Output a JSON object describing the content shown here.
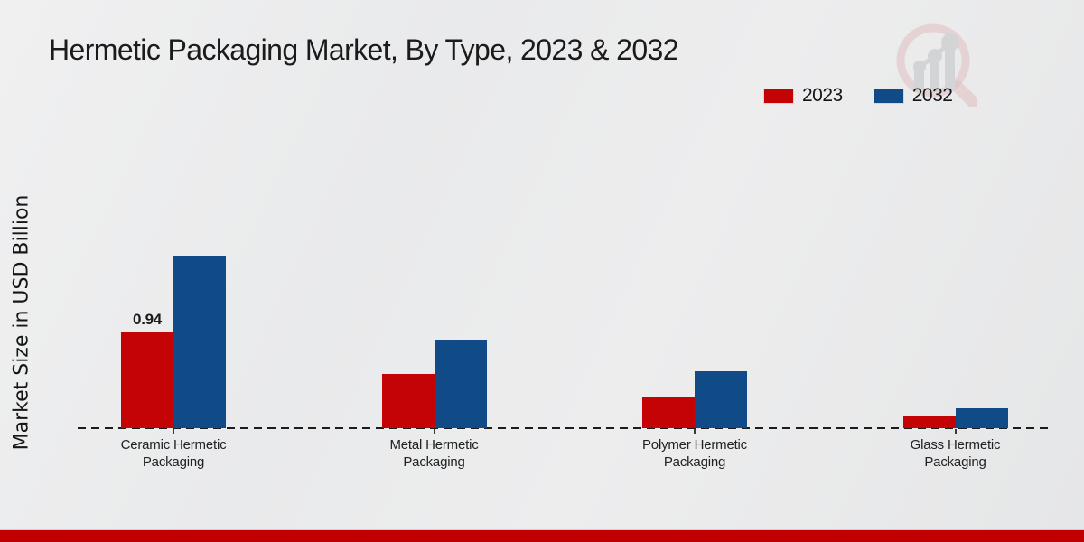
{
  "page": {
    "title": "Hermetic Packaging Market, By Type, 2023 & 2032",
    "y_axis_label": "Market Size in USD Billion"
  },
  "legend": {
    "position": "top-right",
    "items": [
      {
        "label": "2023",
        "color": "#c40404"
      },
      {
        "label": "2032",
        "color": "#114b87"
      }
    ]
  },
  "watermark": {
    "icon": "magnifier-bar-chart-logo"
  },
  "footer": {
    "bar_color": "#c00000"
  },
  "chart_data": {
    "type": "bar",
    "title": "Hermetic Packaging Market, By Type, 2023 & 2032",
    "xlabel": "",
    "ylabel": "Market Size in USD Billion",
    "categories": [
      "Ceramic Hermetic Packaging",
      "Metal Hermetic Packaging",
      "Polymer Hermetic Packaging",
      "Glass Hermetic Packaging"
    ],
    "series": [
      {
        "name": "2023",
        "color": "#c40404",
        "values": [
          0.94,
          0.53,
          0.3,
          0.11
        ]
      },
      {
        "name": "2032",
        "color": "#114b87",
        "values": [
          1.68,
          0.86,
          0.55,
          0.19
        ]
      }
    ],
    "data_labels": [
      {
        "series": "2023",
        "category": "Ceramic Hermetic Packaging",
        "text": "0.94"
      }
    ],
    "ylim": [
      0,
      1.8
    ],
    "grid": false,
    "y_axis_ticks_visible": false,
    "baseline_style": "dashed",
    "legend_position": "top-right"
  }
}
